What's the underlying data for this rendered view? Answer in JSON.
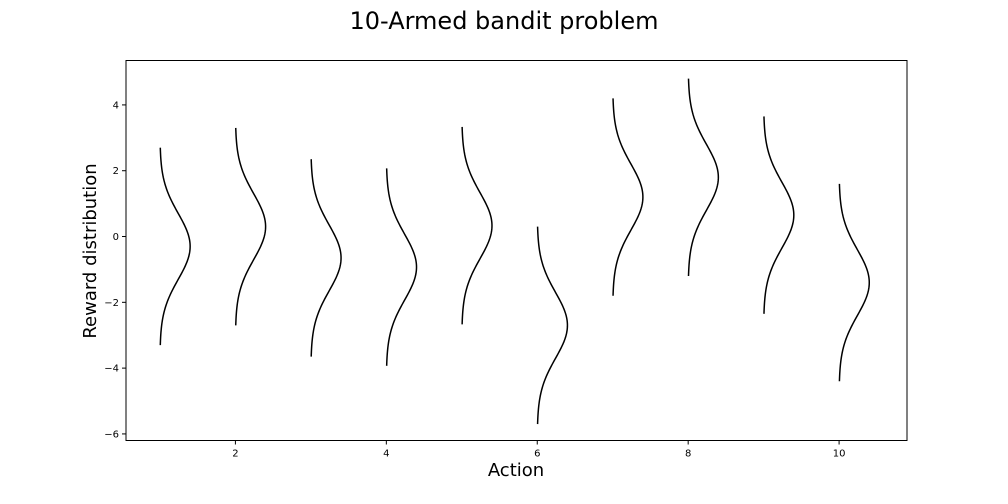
{
  "chart_data": {
    "type": "line",
    "title": "10-Armed bandit problem",
    "xlabel": "Action",
    "ylabel": "Reward distribution",
    "xlim": [
      0.55,
      10.9
    ],
    "ylim": [
      -6.2,
      5.35
    ],
    "xticks": [
      2,
      4,
      6,
      8,
      10
    ],
    "yticks": [
      -6,
      -4,
      -2,
      0,
      2,
      4
    ],
    "grid": false,
    "series": [
      {
        "action": 1,
        "mean": -0.3
      },
      {
        "action": 2,
        "mean": 0.3
      },
      {
        "action": 3,
        "mean": -0.65
      },
      {
        "action": 4,
        "mean": -0.93
      },
      {
        "action": 5,
        "mean": 0.33
      },
      {
        "action": 6,
        "mean": -2.7
      },
      {
        "action": 7,
        "mean": 1.2
      },
      {
        "action": 8,
        "mean": 1.8
      },
      {
        "action": 9,
        "mean": 0.65
      },
      {
        "action": 10,
        "mean": -1.4
      }
    ],
    "spread": 3.0,
    "peak_width": 0.4
  }
}
